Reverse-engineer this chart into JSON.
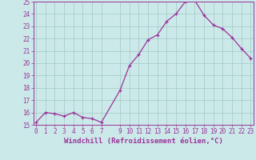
{
  "x": [
    0,
    1,
    2,
    3,
    4,
    5,
    6,
    7,
    9,
    10,
    11,
    12,
    13,
    14,
    15,
    16,
    17,
    18,
    19,
    20,
    21,
    22,
    23
  ],
  "y": [
    15.2,
    16.0,
    15.9,
    15.7,
    16.0,
    15.6,
    15.5,
    15.2,
    17.8,
    19.8,
    20.7,
    21.9,
    22.3,
    23.4,
    24.0,
    25.0,
    25.1,
    23.9,
    23.1,
    22.8,
    22.1,
    21.2,
    20.4
  ],
  "line_color": "#993399",
  "marker": "+",
  "marker_size": 3,
  "bg_color": "#cce9e9",
  "grid_color": "#aacccc",
  "xlabel": "Windchill (Refroidissement éolien,°C)",
  "xlabel_color": "#993399",
  "tick_color": "#993399",
  "spine_color": "#993399",
  "ylim": [
    15,
    25
  ],
  "yticks": [
    15,
    16,
    17,
    18,
    19,
    20,
    21,
    22,
    23,
    24,
    25
  ],
  "xticks": [
    0,
    1,
    2,
    3,
    4,
    5,
    6,
    7,
    9,
    10,
    11,
    12,
    13,
    14,
    15,
    16,
    17,
    18,
    19,
    20,
    21,
    22,
    23
  ],
  "xlim": [
    -0.3,
    23.3
  ],
  "axis_fontsize": 6.0,
  "tick_fontsize": 5.5,
  "xlabel_fontsize": 6.5
}
